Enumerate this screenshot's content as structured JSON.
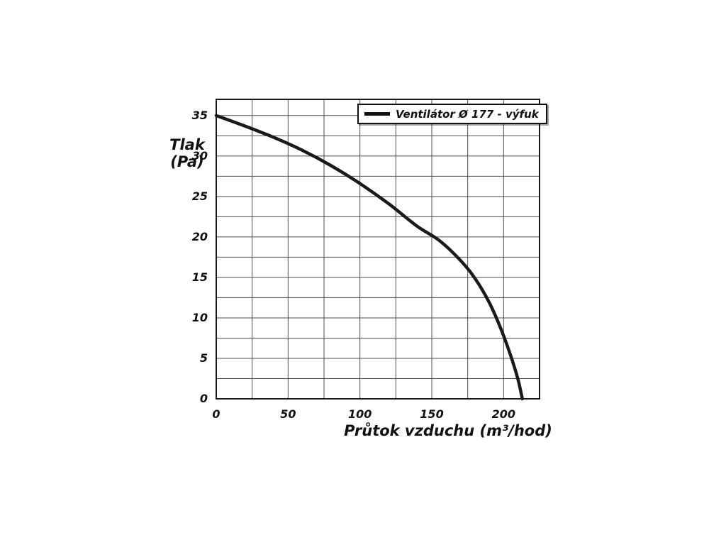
{
  "chart_data": {
    "type": "line",
    "title": "",
    "xlabel": "Průtok vzduchu (m³/hod)",
    "ylabel": "Tlak (Pa)",
    "ylabel_lines": [
      "Tlak",
      "(Pa)"
    ],
    "legend": [
      "Ventilátor Ø 177 - výfuk"
    ],
    "legend_position": "top-right-inside",
    "grid": true,
    "grid_color": "#4d4d4d",
    "border_color": "#1a1a1a",
    "background": "#ffffff",
    "xlim": [
      0,
      225
    ],
    "ylim": [
      0,
      37
    ],
    "x_ticks": [
      0,
      50,
      100,
      150,
      200
    ],
    "y_ticks": [
      0,
      5,
      10,
      15,
      20,
      25,
      30,
      35
    ],
    "x_grid_step": 25,
    "y_grid_step": 2.5,
    "series": [
      {
        "name": "Ventilátor Ø 177 - výfuk",
        "color": "#1a1a1a",
        "stroke_width": 4.5,
        "x": [
          0,
          20,
          40,
          60,
          80,
          100,
          120,
          140,
          155,
          170,
          180,
          190,
          198,
          205,
          210,
          213
        ],
        "y": [
          35,
          33.7,
          32.3,
          30.7,
          28.8,
          26.6,
          24.1,
          21.3,
          19.6,
          17.1,
          14.9,
          11.9,
          8.7,
          5.3,
          2.4,
          0
        ]
      }
    ]
  }
}
